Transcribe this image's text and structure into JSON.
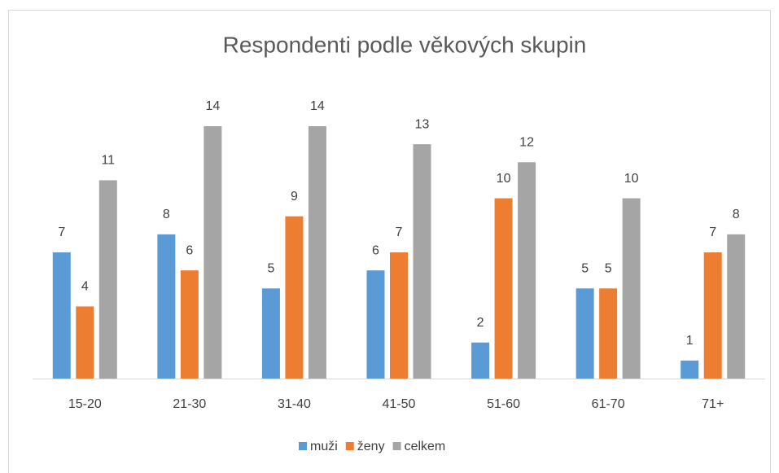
{
  "chart_data": {
    "type": "bar",
    "title": "Respondenti podle věkových skupin",
    "categories": [
      "15-20",
      "21-30",
      "31-40",
      "41-50",
      "51-60",
      "61-70",
      "71+"
    ],
    "series": [
      {
        "name": "muži",
        "color": "#5b9bd5",
        "values": [
          7,
          8,
          5,
          6,
          2,
          5,
          1
        ]
      },
      {
        "name": "ženy",
        "color": "#ed7d31",
        "values": [
          4,
          6,
          9,
          7,
          10,
          5,
          7
        ]
      },
      {
        "name": "celkem",
        "color": "#a5a5a5",
        "values": [
          11,
          14,
          14,
          13,
          12,
          10,
          8
        ]
      }
    ],
    "legend": "bottom"
  }
}
